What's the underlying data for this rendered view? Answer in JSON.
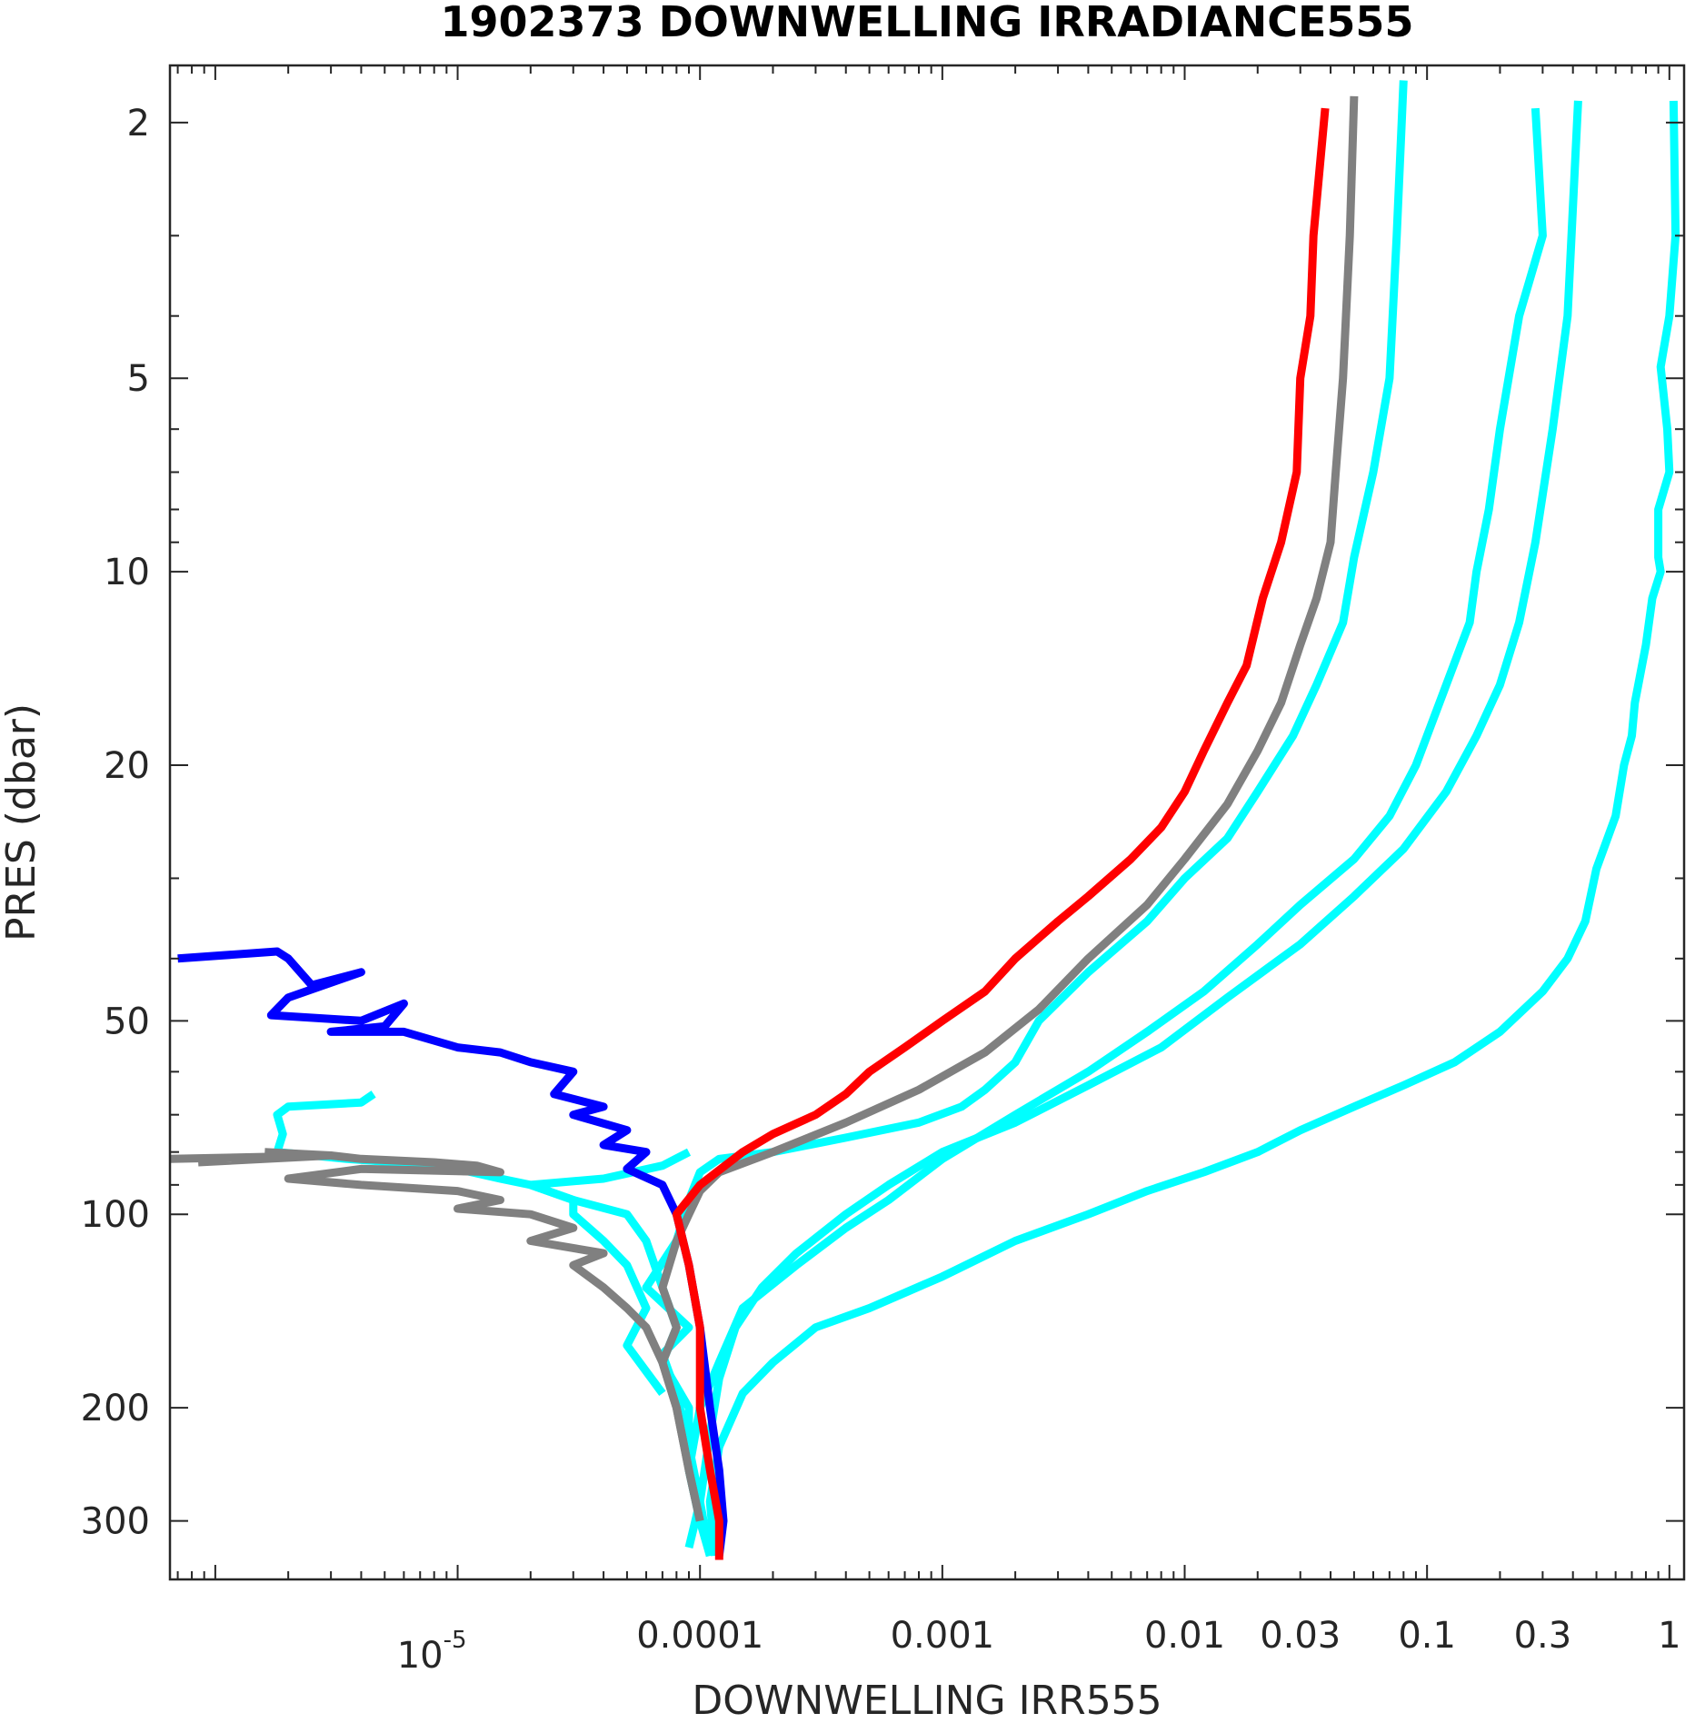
{
  "chart_data": {
    "type": "line",
    "title": "1902373  DOWNWELLING IRRADIANCE555",
    "xlabel": "DOWNWELLING IRR555",
    "ylabel": "PRES (dbar)",
    "x_scale": "log",
    "y_scale": "log",
    "y_reversed": true,
    "xlim": [
      6.5e-07,
      1.15
    ],
    "ylim": [
      1.63,
      370
    ],
    "grid": false,
    "legend": "none",
    "x_ticks": [
      {
        "value": 1e-05,
        "label": "10",
        "sup": "-5"
      },
      {
        "value": 0.0001,
        "label": "0.0001"
      },
      {
        "value": 0.001,
        "label": "0.001"
      },
      {
        "value": 0.01,
        "label": "0.01"
      },
      {
        "value": 0.03,
        "label": "0.03"
      },
      {
        "value": 0.1,
        "label": "0.1"
      },
      {
        "value": 0.3,
        "label": "0.3"
      },
      {
        "value": 1,
        "label": "1"
      }
    ],
    "y_ticks": [
      {
        "value": 2,
        "label": "2"
      },
      {
        "value": 5,
        "label": "5"
      },
      {
        "value": 10,
        "label": "10"
      },
      {
        "value": 20,
        "label": "20"
      },
      {
        "value": 50,
        "label": "50"
      },
      {
        "value": 100,
        "label": "100"
      },
      {
        "value": 200,
        "label": "200"
      },
      {
        "value": 300,
        "label": "300"
      }
    ],
    "series": [
      {
        "color": "#00ffff",
        "points": [
          [
            1.04,
            1.85
          ],
          [
            1.06,
            3
          ],
          [
            1.0,
            4
          ],
          [
            0.92,
            4.8
          ],
          [
            0.98,
            6
          ],
          [
            1.0,
            7
          ],
          [
            0.9,
            8
          ],
          [
            0.9,
            9.5
          ],
          [
            0.92,
            10
          ],
          [
            0.85,
            11
          ],
          [
            0.8,
            13
          ],
          [
            0.72,
            16
          ],
          [
            0.7,
            18
          ],
          [
            0.65,
            20
          ],
          [
            0.6,
            24
          ],
          [
            0.5,
            29
          ],
          [
            0.45,
            35
          ],
          [
            0.38,
            40
          ],
          [
            0.3,
            45
          ],
          [
            0.2,
            52
          ],
          [
            0.13,
            58
          ],
          [
            0.08,
            63
          ],
          [
            0.05,
            68
          ],
          [
            0.03,
            74
          ],
          [
            0.02,
            80
          ],
          [
            0.012,
            86
          ],
          [
            0.007,
            92
          ],
          [
            0.004,
            100
          ],
          [
            0.002,
            110
          ],
          [
            0.001,
            125
          ],
          [
            0.0005,
            140
          ],
          [
            0.0003,
            150
          ],
          [
            0.0002,
            170
          ],
          [
            0.00015,
            190
          ],
          [
            0.00012,
            230
          ],
          [
            0.00011,
            280
          ],
          [
            0.000115,
            340
          ]
        ]
      },
      {
        "color": "#00ffff",
        "points": [
          [
            0.42,
            1.85
          ],
          [
            0.38,
            4
          ],
          [
            0.33,
            6
          ],
          [
            0.28,
            9
          ],
          [
            0.24,
            12
          ],
          [
            0.2,
            15
          ],
          [
            0.16,
            18
          ],
          [
            0.12,
            22
          ],
          [
            0.08,
            27
          ],
          [
            0.05,
            32
          ],
          [
            0.03,
            38
          ],
          [
            0.015,
            46
          ],
          [
            0.008,
            55
          ],
          [
            0.004,
            63
          ],
          [
            0.002,
            72
          ],
          [
            0.001,
            80
          ],
          [
            0.0006,
            90
          ],
          [
            0.0004,
            100
          ],
          [
            0.00025,
            115
          ],
          [
            0.00018,
            130
          ],
          [
            0.00014,
            150
          ],
          [
            0.00012,
            180
          ],
          [
            0.00011,
            220
          ],
          [
            0.0001,
            280
          ],
          [
            0.00011,
            340
          ]
        ]
      },
      {
        "color": "#00ffff",
        "points": [
          [
            0.28,
            1.9
          ],
          [
            0.3,
            3
          ],
          [
            0.24,
            4
          ],
          [
            0.2,
            6
          ],
          [
            0.18,
            8
          ],
          [
            0.16,
            10
          ],
          [
            0.15,
            12
          ],
          [
            0.12,
            15
          ],
          [
            0.1,
            18
          ],
          [
            0.09,
            20
          ],
          [
            0.07,
            24
          ],
          [
            0.05,
            28
          ],
          [
            0.03,
            33
          ],
          [
            0.02,
            38
          ],
          [
            0.012,
            45
          ],
          [
            0.007,
            52
          ],
          [
            0.004,
            60
          ],
          [
            0.002,
            70
          ],
          [
            0.001,
            82
          ],
          [
            0.0006,
            95
          ],
          [
            0.0004,
            105
          ],
          [
            0.00025,
            120
          ],
          [
            0.00015,
            140
          ],
          [
            0.00012,
            170
          ],
          [
            0.0001,
            200
          ],
          [
            9e-05,
            250
          ],
          [
            0.0001,
            300
          ],
          [
            0.00011,
            340
          ]
        ]
      },
      {
        "color": "#00ffff",
        "points": [
          [
            0.08,
            1.72
          ],
          [
            0.075,
            3
          ],
          [
            0.07,
            5
          ],
          [
            0.06,
            7
          ],
          [
            0.05,
            9.5
          ],
          [
            0.045,
            12
          ],
          [
            0.035,
            15
          ],
          [
            0.028,
            18
          ],
          [
            0.02,
            22
          ],
          [
            0.015,
            26
          ],
          [
            0.01,
            30
          ],
          [
            0.007,
            35
          ],
          [
            0.004,
            42
          ],
          [
            0.0025,
            50
          ],
          [
            0.002,
            58
          ],
          [
            0.0015,
            64
          ],
          [
            0.0012,
            68
          ],
          [
            0.0008,
            72
          ],
          [
            0.0004,
            76
          ],
          [
            0.0002,
            80
          ],
          [
            0.00012,
            82
          ],
          [
            0.0001,
            86
          ],
          [
            9e-05,
            95
          ],
          [
            8e-05,
            110
          ],
          [
            6e-05,
            130
          ],
          [
            9e-05,
            150
          ],
          [
            7e-05,
            165
          ],
          [
            8e-05,
            190
          ],
          [
            9e-05,
            230
          ],
          [
            0.0001,
            280
          ],
          [
            9e-05,
            330
          ]
        ]
      },
      {
        "color": "#00ffff",
        "points": [
          [
            9e-05,
            80
          ],
          [
            7e-05,
            84
          ],
          [
            4e-05,
            88
          ],
          [
            2e-05,
            90
          ],
          [
            3e-05,
            95
          ],
          [
            5e-05,
            100
          ],
          [
            6e-05,
            110
          ],
          [
            7e-05,
            130
          ],
          [
            8e-05,
            150
          ],
          [
            7e-05,
            170
          ],
          [
            9e-05,
            200
          ],
          [
            9e-05,
            250
          ],
          [
            0.0001,
            300
          ]
        ]
      },
      {
        "color": "#00ffff",
        "points": [
          [
            4.5e-06,
            65
          ],
          [
            4e-06,
            67
          ],
          [
            2e-06,
            68
          ],
          [
            1.8e-06,
            70
          ],
          [
            1.9e-06,
            75
          ],
          [
            1.8e-06,
            80
          ],
          [
            3.5e-06,
            82
          ],
          [
            5.5e-06,
            83
          ],
          [
            1e-05,
            85
          ],
          [
            1.5e-05,
            88
          ],
          [
            2e-05,
            90
          ],
          [
            3e-05,
            95
          ],
          [
            3e-05,
            100
          ],
          [
            4e-05,
            110
          ],
          [
            5e-05,
            120
          ],
          [
            6e-05,
            140
          ],
          [
            5e-05,
            160
          ],
          [
            7e-05,
            190
          ]
        ]
      },
      {
        "color": "#808080",
        "points": [
          [
            0.05,
            1.82
          ],
          [
            0.048,
            3
          ],
          [
            0.045,
            5
          ],
          [
            0.042,
            7
          ],
          [
            0.04,
            9
          ],
          [
            0.035,
            11
          ],
          [
            0.03,
            13
          ],
          [
            0.025,
            16
          ],
          [
            0.02,
            19
          ],
          [
            0.015,
            23
          ],
          [
            0.01,
            28
          ],
          [
            0.007,
            33
          ],
          [
            0.004,
            40
          ],
          [
            0.0025,
            48
          ],
          [
            0.0015,
            56
          ],
          [
            0.0008,
            64
          ],
          [
            0.0004,
            72
          ],
          [
            0.0002,
            80
          ],
          [
            0.00012,
            86
          ],
          [
            0.0001,
            92
          ],
          [
            9e-05,
            100
          ],
          [
            8e-05,
            110
          ],
          [
            7e-05,
            130
          ],
          [
            8e-05,
            150
          ],
          [
            7e-05,
            170
          ],
          [
            8e-05,
            200
          ],
          [
            9e-05,
            250
          ],
          [
            0.0001,
            300
          ]
        ]
      },
      {
        "color": "#808080",
        "points": [
          [
            1.6e-06,
            80
          ],
          [
            3e-06,
            81
          ],
          [
            4e-06,
            82
          ],
          [
            8e-06,
            83
          ],
          [
            1.2e-05,
            84
          ],
          [
            1.5e-05,
            86
          ],
          [
            4e-06,
            85
          ],
          [
            2e-06,
            88
          ],
          [
            4e-06,
            90
          ],
          [
            1e-05,
            92
          ],
          [
            1.5e-05,
            95
          ],
          [
            1e-05,
            98
          ],
          [
            2e-05,
            100
          ],
          [
            3e-05,
            105
          ],
          [
            2e-05,
            110
          ],
          [
            4e-05,
            115
          ],
          [
            3e-05,
            120
          ],
          [
            4e-05,
            130
          ],
          [
            5e-05,
            140
          ],
          [
            6e-05,
            150
          ],
          [
            7e-05,
            170
          ],
          [
            8e-05,
            200
          ],
          [
            9e-05,
            250
          ],
          [
            0.0001,
            300
          ]
        ]
      },
      {
        "color": "#808080",
        "points": [
          [
            6.5e-07,
            82
          ],
          [
            3e-06,
            81
          ],
          [
            8.5e-07,
            83
          ]
        ]
      },
      {
        "color": "#0000ff",
        "points": [
          [
            7e-07,
            40
          ],
          [
            1.8e-06,
            39
          ],
          [
            2e-06,
            40
          ],
          [
            2.5e-06,
            44
          ],
          [
            4e-06,
            42
          ],
          [
            2e-06,
            46
          ],
          [
            1.7e-06,
            49
          ],
          [
            4e-06,
            50
          ],
          [
            6e-06,
            47
          ],
          [
            5e-06,
            51
          ],
          [
            3e-06,
            52
          ],
          [
            6e-06,
            52
          ],
          [
            1e-05,
            55
          ],
          [
            1.5e-05,
            56
          ],
          [
            2e-05,
            58
          ],
          [
            3e-05,
            60
          ],
          [
            2.5e-05,
            65
          ],
          [
            4e-05,
            68
          ],
          [
            3e-05,
            70
          ],
          [
            5e-05,
            74
          ],
          [
            4e-05,
            78
          ],
          [
            6e-05,
            80
          ],
          [
            5e-05,
            85
          ],
          [
            7e-05,
            90
          ],
          [
            8e-05,
            100
          ],
          [
            9e-05,
            120
          ],
          [
            0.0001,
            150
          ],
          [
            0.00011,
            200
          ],
          [
            0.00012,
            250
          ],
          [
            0.000125,
            300
          ],
          [
            0.00012,
            340
          ]
        ]
      },
      {
        "color": "#ff0000",
        "points": [
          [
            0.038,
            1.9
          ],
          [
            0.034,
            3
          ],
          [
            0.033,
            4
          ],
          [
            0.03,
            5
          ],
          [
            0.029,
            7
          ],
          [
            0.025,
            9
          ],
          [
            0.021,
            11
          ],
          [
            0.018,
            14
          ],
          [
            0.015,
            16
          ],
          [
            0.012,
            19
          ],
          [
            0.01,
            22
          ],
          [
            0.008,
            25
          ],
          [
            0.006,
            28
          ],
          [
            0.004,
            32
          ],
          [
            0.003,
            35
          ],
          [
            0.002,
            40
          ],
          [
            0.0015,
            45
          ],
          [
            0.001,
            50
          ],
          [
            0.0007,
            55
          ],
          [
            0.0005,
            60
          ],
          [
            0.0004,
            65
          ],
          [
            0.0003,
            70
          ],
          [
            0.0002,
            75
          ],
          [
            0.00015,
            80
          ],
          [
            0.0001,
            90
          ],
          [
            8e-05,
            100
          ],
          [
            9e-05,
            120
          ],
          [
            0.0001,
            150
          ],
          [
            0.0001,
            200
          ],
          [
            0.00011,
            250
          ],
          [
            0.00012,
            300
          ],
          [
            0.00012,
            345
          ]
        ]
      }
    ]
  }
}
